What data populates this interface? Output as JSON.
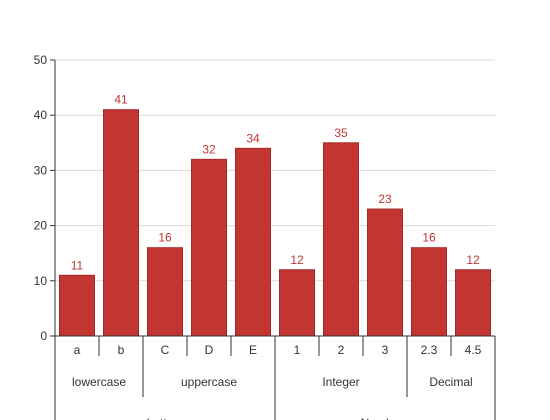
{
  "chart_data": {
    "type": "bar",
    "categories": [
      "a",
      "b",
      "C",
      "D",
      "E",
      "1",
      "2",
      "3",
      "2.3",
      "4.5"
    ],
    "values": [
      11,
      41,
      16,
      32,
      34,
      12,
      35,
      23,
      16,
      12
    ],
    "ylim": [
      0,
      50
    ],
    "yticks": [
      0,
      10,
      20,
      30,
      40,
      50
    ],
    "grid": true,
    "groups": [
      {
        "label": "lowercase",
        "count": 2
      },
      {
        "label": "uppercase",
        "count": 3
      },
      {
        "label": "Integer",
        "count": 3
      },
      {
        "label": "Decimal",
        "count": 2
      }
    ],
    "supergroups": [
      {
        "label": "Letters",
        "count": 5
      },
      {
        "label": "Numbers",
        "count": 5
      }
    ],
    "colors": {
      "bar": "#c23531",
      "bar_stroke": "#a82a27",
      "label": "#c23531",
      "grid": "#d9d9d9",
      "axis": "#333333"
    }
  }
}
